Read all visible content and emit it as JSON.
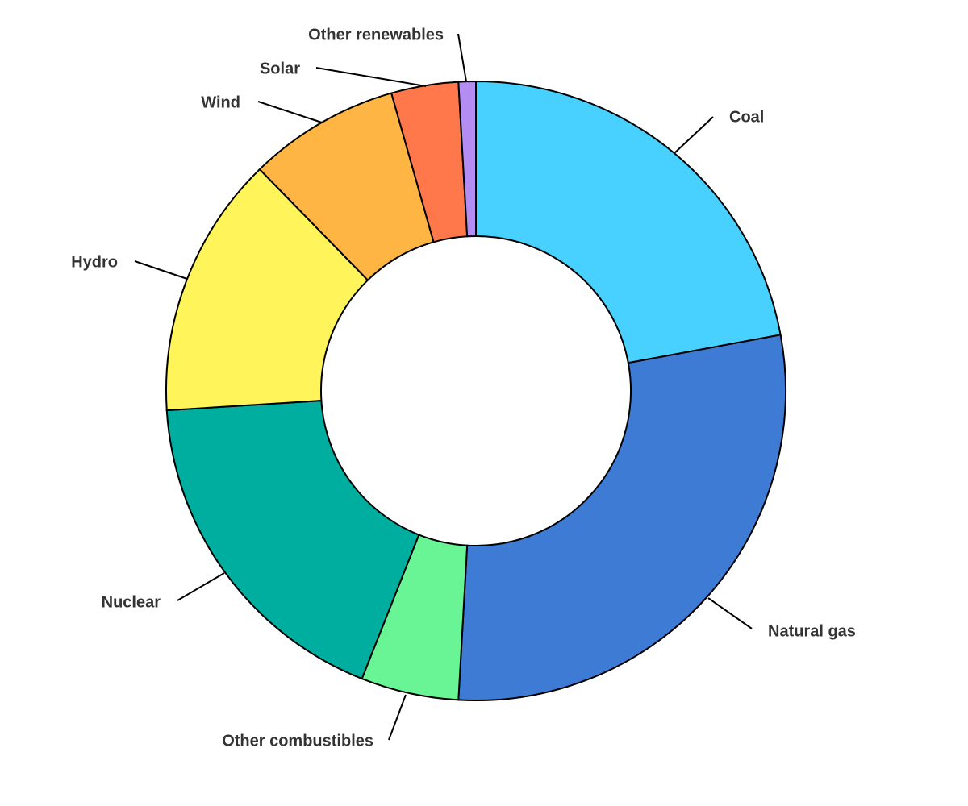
{
  "chart_data": {
    "type": "donut",
    "categories": [
      "Coal",
      "Natural gas",
      "Other combustibles",
      "Nuclear",
      "Hydro",
      "Wind",
      "Solar",
      "Other renewables"
    ],
    "values": [
      22.1,
      28.8,
      5.1,
      18.0,
      13.7,
      7.9,
      3.5,
      0.9
    ],
    "colors": [
      "#48d1ff",
      "#3e7bd4",
      "#69f595",
      "#00ae9f",
      "#fff45a",
      "#ffb544",
      "#ff784b",
      "#b38df2"
    ]
  }
}
